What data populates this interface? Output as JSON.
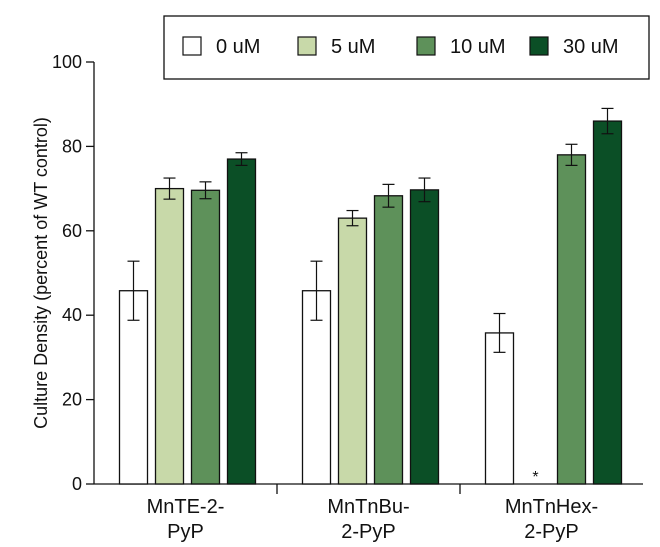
{
  "chart_data": {
    "type": "bar",
    "title": "",
    "xlabel": "",
    "ylabel": "Culture Density (percent of WT control)",
    "ylim": [
      0,
      100
    ],
    "yticks": [
      0,
      20,
      40,
      60,
      80,
      100
    ],
    "categories": [
      [
        "MnTE-2-",
        "PyP"
      ],
      [
        "MnTnBu-",
        "2-PyP"
      ],
      [
        "MnTnHex-",
        "2-PyP"
      ]
    ],
    "series": [
      {
        "name": "0 uM",
        "color": "#ffffff",
        "values": [
          45.8,
          45.8,
          35.8
        ],
        "errors": [
          7.0,
          7.0,
          4.6
        ]
      },
      {
        "name": "5 uM",
        "color": "#c8d9a9",
        "values": [
          70.0,
          63.0,
          null
        ],
        "errors": [
          2.5,
          1.8,
          null
        ]
      },
      {
        "name": "10 uM",
        "color": "#5e915a",
        "values": [
          69.6,
          68.3,
          78.0
        ],
        "errors": [
          2.0,
          2.7,
          2.5
        ]
      },
      {
        "name": "30 uM",
        "color": "#0b4f26",
        "values": [
          77.0,
          69.7,
          86.0
        ],
        "errors": [
          1.5,
          2.8,
          3.0
        ]
      }
    ],
    "annotations": [
      {
        "text": "*",
        "category_index": 2,
        "series_index": 1
      }
    ],
    "grid": false,
    "legend_position": "top-right"
  }
}
